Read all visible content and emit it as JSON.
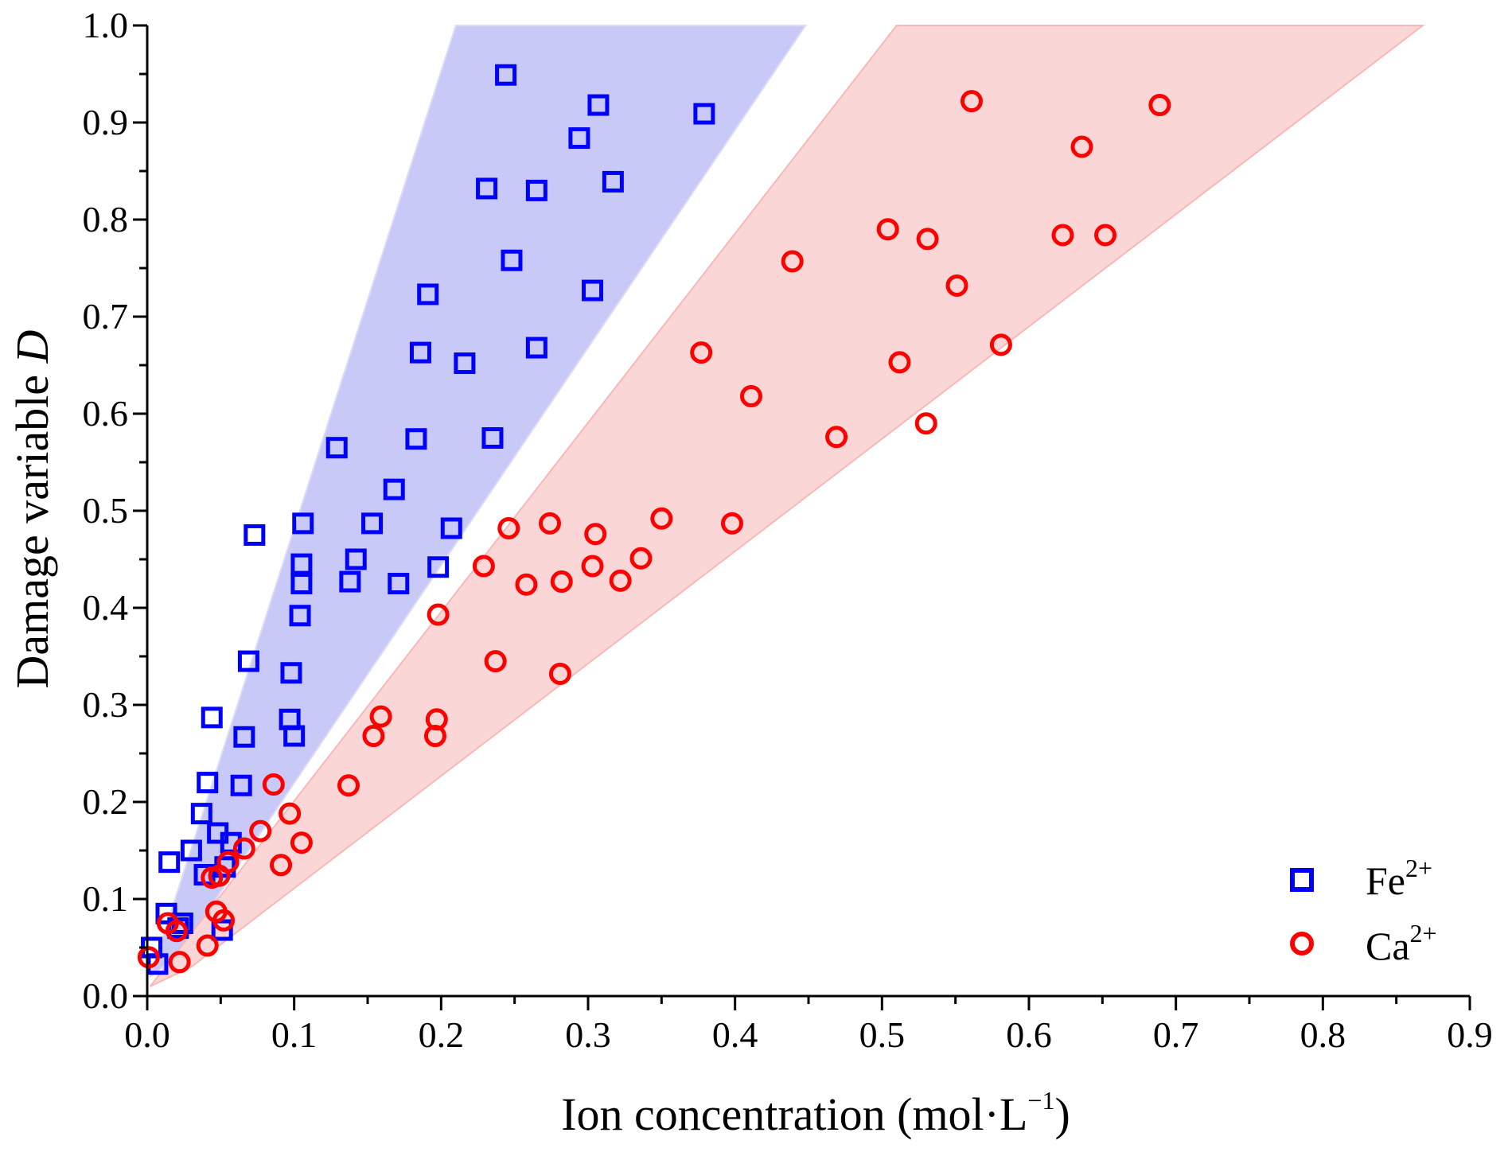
{
  "chart_data": {
    "type": "scatter",
    "title": "",
    "xlabel": "Ion concentration (mol·L",
    "xlabel_exp": "−1",
    "xlabel_close": ")",
    "ylabel": "Damage variable ",
    "ylabel_italic": "D",
    "xlim": [
      0.0,
      0.9
    ],
    "ylim": [
      0.0,
      1.0
    ],
    "xticks": [
      "0.0",
      "0.1",
      "0.2",
      "0.3",
      "0.4",
      "0.5",
      "0.6",
      "0.7",
      "0.8",
      "0.9"
    ],
    "yticks": [
      "0.0",
      "0.1",
      "0.2",
      "0.3",
      "0.4",
      "0.5",
      "0.6",
      "0.7",
      "0.8",
      "0.9",
      "1.0"
    ],
    "legend_position": "bottom-right",
    "bands": [
      {
        "name": "Fe band",
        "color": "#c9c9f7",
        "polygon": [
          [
            0.002,
            0.02
          ],
          [
            0.21,
            1.0
          ],
          [
            0.448,
            1.0
          ],
          [
            0.02,
            0.04
          ]
        ]
      },
      {
        "name": "Ca band",
        "color": "#fbd6d6",
        "polygon": [
          [
            0.002,
            0.01
          ],
          [
            0.51,
            1.0
          ],
          [
            0.868,
            1.0
          ],
          [
            0.03,
            0.03
          ]
        ]
      }
    ],
    "series": [
      {
        "name": "Fe",
        "superscript": "2+",
        "marker": "square",
        "color": "#0000ff",
        "points": [
          [
            0.003,
            0.05
          ],
          [
            0.007,
            0.033
          ],
          [
            0.013,
            0.085
          ],
          [
            0.015,
            0.138
          ],
          [
            0.021,
            0.07
          ],
          [
            0.024,
            0.075
          ],
          [
            0.03,
            0.15
          ],
          [
            0.037,
            0.188
          ],
          [
            0.039,
            0.125
          ],
          [
            0.041,
            0.22
          ],
          [
            0.044,
            0.287
          ],
          [
            0.048,
            0.168
          ],
          [
            0.051,
            0.068
          ],
          [
            0.053,
            0.133
          ],
          [
            0.057,
            0.158
          ],
          [
            0.064,
            0.217
          ],
          [
            0.066,
            0.267
          ],
          [
            0.069,
            0.345
          ],
          [
            0.073,
            0.475
          ],
          [
            0.097,
            0.285
          ],
          [
            0.098,
            0.333
          ],
          [
            0.1,
            0.268
          ],
          [
            0.104,
            0.392
          ],
          [
            0.105,
            0.425
          ],
          [
            0.105,
            0.445
          ],
          [
            0.106,
            0.487
          ],
          [
            0.129,
            0.565
          ],
          [
            0.138,
            0.427
          ],
          [
            0.142,
            0.45
          ],
          [
            0.153,
            0.487
          ],
          [
            0.168,
            0.522
          ],
          [
            0.171,
            0.425
          ],
          [
            0.183,
            0.574
          ],
          [
            0.186,
            0.663
          ],
          [
            0.191,
            0.723
          ],
          [
            0.198,
            0.442
          ],
          [
            0.207,
            0.482
          ],
          [
            0.216,
            0.652
          ],
          [
            0.231,
            0.832
          ],
          [
            0.235,
            0.575
          ],
          [
            0.244,
            0.949
          ],
          [
            0.248,
            0.758
          ],
          [
            0.265,
            0.83
          ],
          [
            0.265,
            0.668
          ],
          [
            0.294,
            0.884
          ],
          [
            0.303,
            0.727
          ],
          [
            0.307,
            0.918
          ],
          [
            0.317,
            0.839
          ],
          [
            0.379,
            0.909
          ]
        ]
      },
      {
        "name": "Ca",
        "superscript": "2+",
        "marker": "circle",
        "color": "#ff0000",
        "points": [
          [
            0.001,
            0.04
          ],
          [
            0.014,
            0.075
          ],
          [
            0.02,
            0.067
          ],
          [
            0.022,
            0.035
          ],
          [
            0.041,
            0.052
          ],
          [
            0.044,
            0.122
          ],
          [
            0.047,
            0.087
          ],
          [
            0.049,
            0.124
          ],
          [
            0.052,
            0.078
          ],
          [
            0.055,
            0.138
          ],
          [
            0.066,
            0.152
          ],
          [
            0.077,
            0.17
          ],
          [
            0.086,
            0.218
          ],
          [
            0.091,
            0.135
          ],
          [
            0.097,
            0.188
          ],
          [
            0.105,
            0.158
          ],
          [
            0.137,
            0.217
          ],
          [
            0.154,
            0.268
          ],
          [
            0.159,
            0.288
          ],
          [
            0.196,
            0.268
          ],
          [
            0.197,
            0.285
          ],
          [
            0.198,
            0.393
          ],
          [
            0.229,
            0.443
          ],
          [
            0.237,
            0.345
          ],
          [
            0.246,
            0.482
          ],
          [
            0.258,
            0.424
          ],
          [
            0.274,
            0.487
          ],
          [
            0.281,
            0.332
          ],
          [
            0.282,
            0.427
          ],
          [
            0.303,
            0.443
          ],
          [
            0.305,
            0.476
          ],
          [
            0.322,
            0.428
          ],
          [
            0.336,
            0.451
          ],
          [
            0.35,
            0.492
          ],
          [
            0.377,
            0.663
          ],
          [
            0.398,
            0.487
          ],
          [
            0.411,
            0.618
          ],
          [
            0.439,
            0.757
          ],
          [
            0.469,
            0.576
          ],
          [
            0.504,
            0.79
          ],
          [
            0.512,
            0.653
          ],
          [
            0.53,
            0.59
          ],
          [
            0.531,
            0.78
          ],
          [
            0.551,
            0.732
          ],
          [
            0.561,
            0.922
          ],
          [
            0.581,
            0.671
          ],
          [
            0.623,
            0.784
          ],
          [
            0.636,
            0.875
          ],
          [
            0.652,
            0.784
          ],
          [
            0.689,
            0.918
          ]
        ]
      }
    ]
  }
}
